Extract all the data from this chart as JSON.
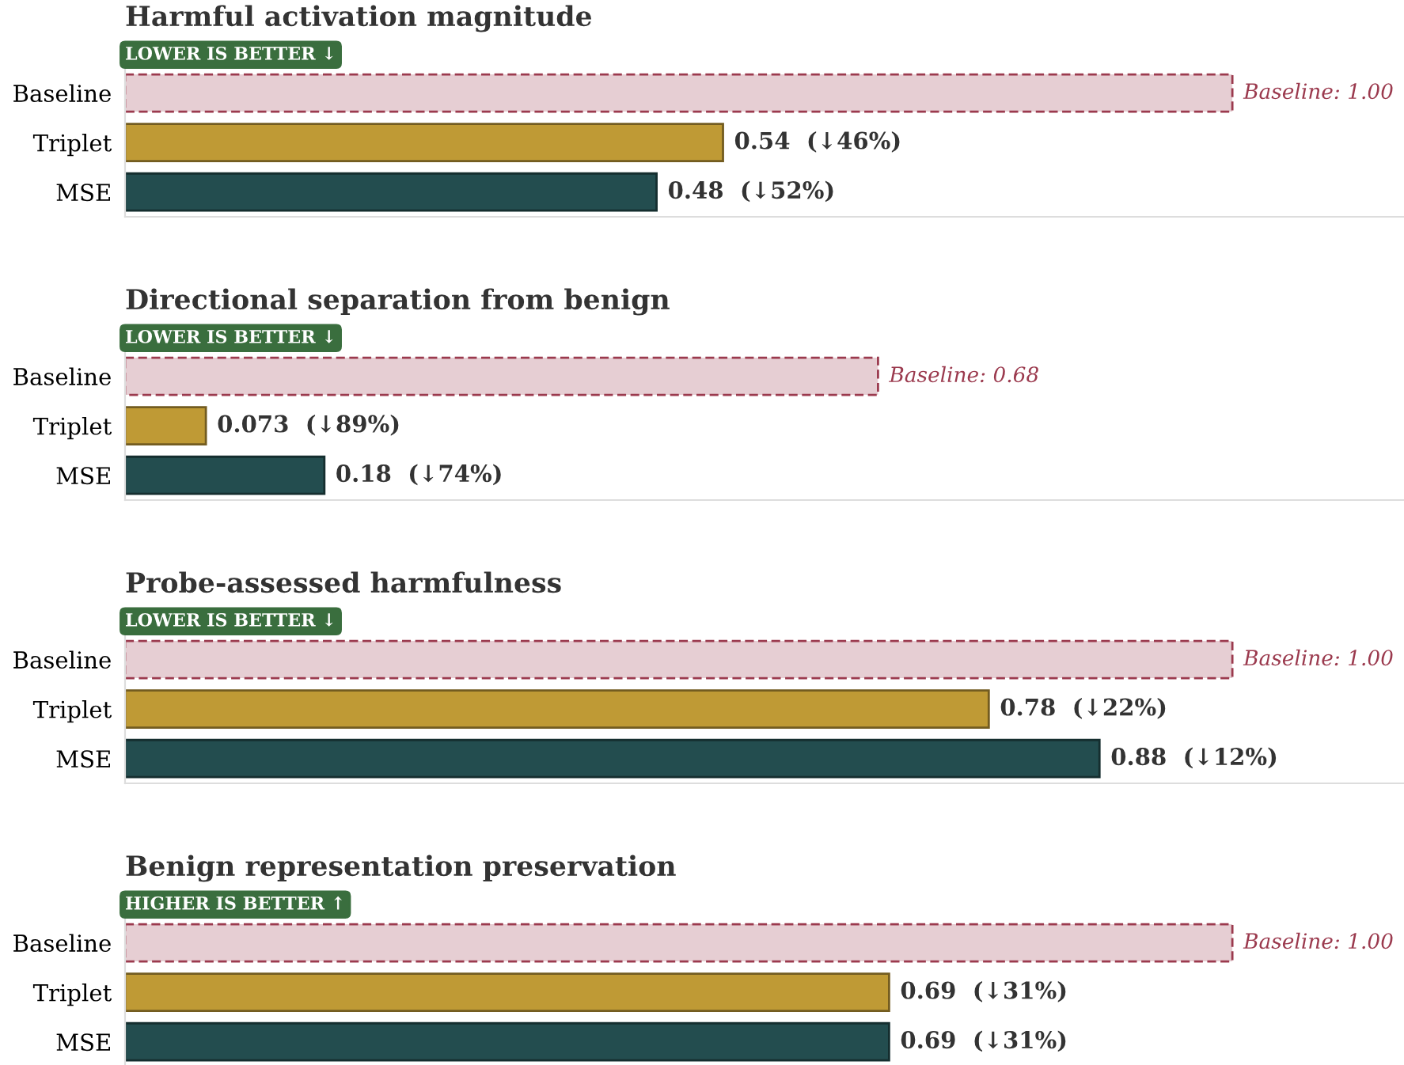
{
  "chart_data": [
    {
      "type": "bar",
      "orientation": "horizontal",
      "title": "Harmful activation magnitude",
      "annotations": [
        "LOWER IS BETTER ↓"
      ],
      "categories": [
        "Baseline",
        "Triplet",
        "MSE"
      ],
      "tick_labels": "y",
      "grid": false,
      "series": [
        {
          "color": "#9b3a4e",
          "line_style": "dashed",
          "values": [
            1.0,
            null,
            null
          ],
          "value_labels": [
            "Baseline: 1.00",
            null,
            null
          ]
        },
        {
          "color": "#bf9a35",
          "line_style": "solid",
          "values": [
            null,
            0.54,
            null
          ],
          "value_labels": [
            null,
            "0.54  (↓46%)",
            null
          ]
        },
        {
          "color": "#234d4f",
          "line_style": "solid",
          "values": [
            null,
            null,
            0.48
          ],
          "value_labels": [
            null,
            null,
            "0.48  (↓52%)"
          ]
        }
      ]
    },
    {
      "type": "bar",
      "orientation": "horizontal",
      "title": "Directional separation from benign",
      "annotations": [
        "LOWER IS BETTER ↓"
      ],
      "categories": [
        "Baseline",
        "Triplet",
        "MSE"
      ],
      "tick_labels": "y",
      "grid": false,
      "series": [
        {
          "color": "#9b3a4e",
          "line_style": "dashed",
          "values": [
            0.68,
            null,
            null
          ],
          "value_labels": [
            "Baseline: 0.68",
            null,
            null
          ]
        },
        {
          "color": "#bf9a35",
          "line_style": "solid",
          "values": [
            null,
            0.073,
            null
          ],
          "value_labels": [
            null,
            "0.073  (↓89%)",
            null
          ]
        },
        {
          "color": "#234d4f",
          "line_style": "solid",
          "values": [
            null,
            null,
            0.18
          ],
          "value_labels": [
            null,
            null,
            "0.18  (↓74%)"
          ]
        }
      ]
    },
    {
      "type": "bar",
      "orientation": "horizontal",
      "title": "Probe-assessed harmfulness",
      "annotations": [
        "LOWER IS BETTER ↓"
      ],
      "categories": [
        "Baseline",
        "Triplet",
        "MSE"
      ],
      "tick_labels": "y",
      "grid": false,
      "series": [
        {
          "color": "#9b3a4e",
          "line_style": "dashed",
          "values": [
            1.0,
            null,
            null
          ],
          "value_labels": [
            "Baseline: 1.00",
            null,
            null
          ]
        },
        {
          "color": "#bf9a35",
          "line_style": "solid",
          "values": [
            null,
            0.78,
            null
          ],
          "value_labels": [
            null,
            "0.78  (↓22%)",
            null
          ]
        },
        {
          "color": "#234d4f",
          "line_style": "solid",
          "values": [
            null,
            null,
            0.88
          ],
          "value_labels": [
            null,
            null,
            "0.88  (↓12%)"
          ]
        }
      ]
    },
    {
      "type": "bar",
      "orientation": "horizontal",
      "title": "Benign representation preservation",
      "annotations": [
        "HIGHER IS BETTER ↑"
      ],
      "categories": [
        "Baseline",
        "Triplet",
        "MSE"
      ],
      "tick_labels": "y",
      "grid": false,
      "series": [
        {
          "color": "#9b3a4e",
          "line_style": "dashed",
          "values": [
            1.0,
            null,
            null
          ],
          "value_labels": [
            "Baseline: 1.00",
            null,
            null
          ]
        },
        {
          "color": "#bf9a35",
          "line_style": "solid",
          "values": [
            null,
            0.69,
            null
          ],
          "value_labels": [
            null,
            "0.69  (↓31%)",
            null
          ]
        },
        {
          "color": "#234d4f",
          "line_style": "solid",
          "values": [
            null,
            null,
            0.69
          ],
          "value_labels": [
            null,
            null,
            "0.69  (↓31%)"
          ]
        }
      ]
    }
  ]
}
